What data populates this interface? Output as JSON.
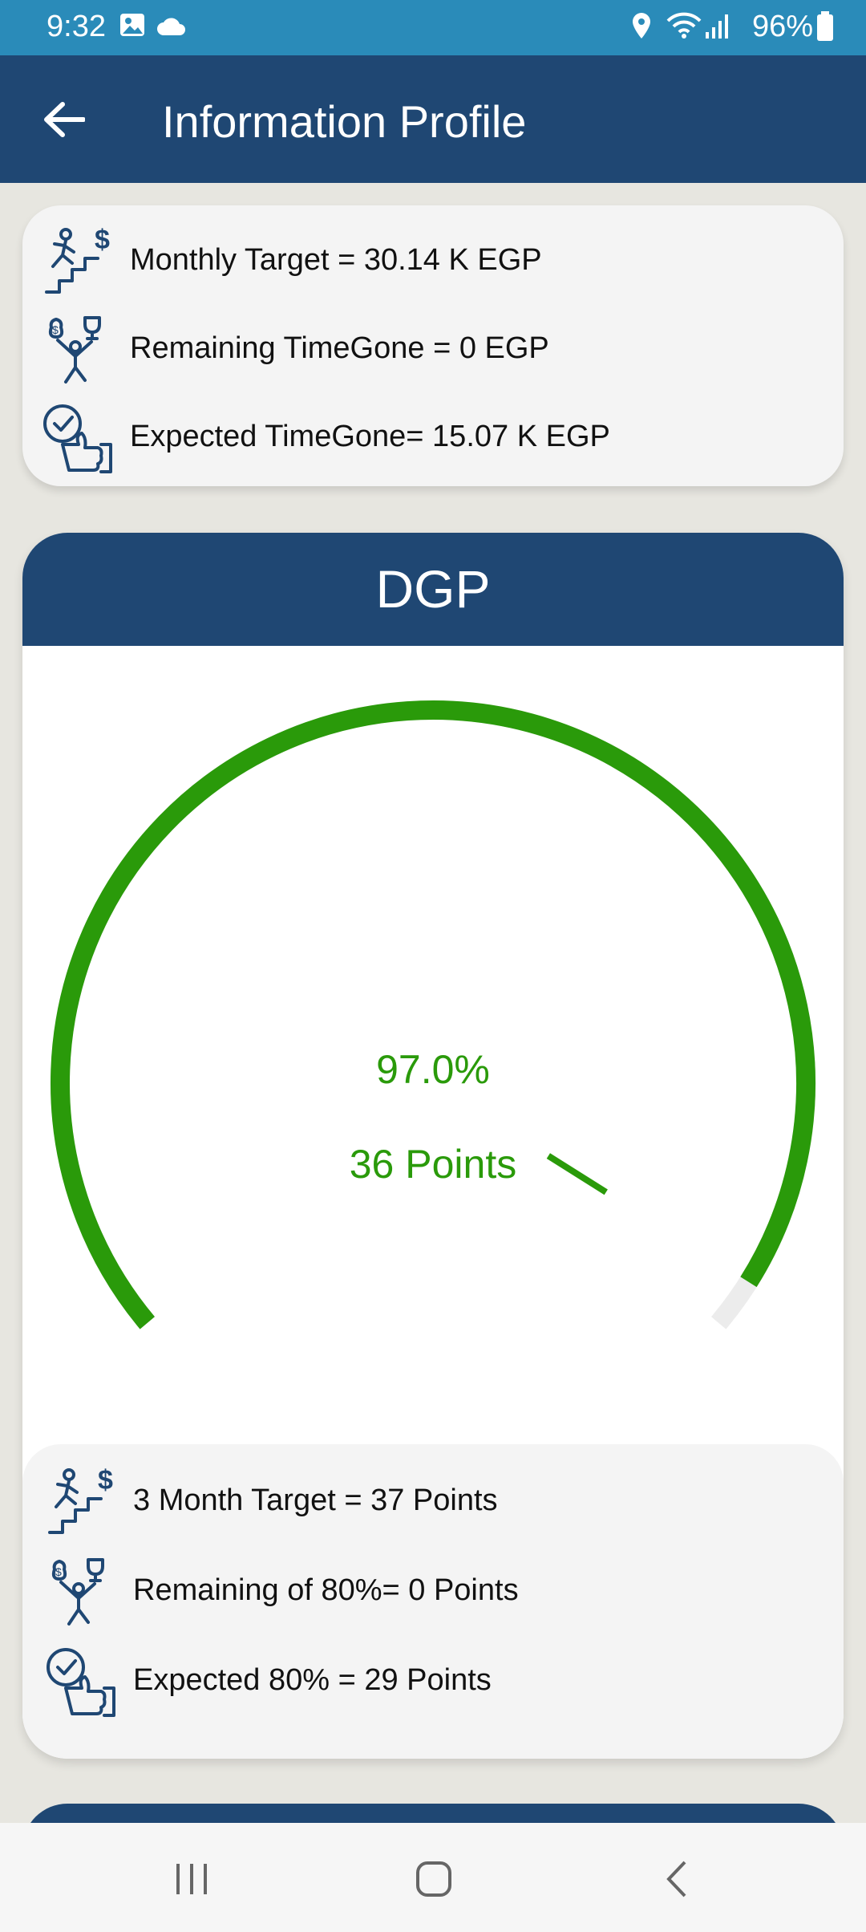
{
  "status": {
    "time": "9:32",
    "battery": "96%"
  },
  "header": {
    "title": "Information Profile"
  },
  "top_card": {
    "rows": [
      {
        "text": "Monthly Target = 30.14 K EGP",
        "icon": "stairs-target-icon"
      },
      {
        "text": "Remaining TimeGone = 0 EGP",
        "icon": "money-trophy-juggler-icon"
      },
      {
        "text": "Expected TimeGone= 15.07 K EGP",
        "icon": "thumbs-up-check-icon"
      }
    ]
  },
  "dgp": {
    "title": "DGP",
    "percent": "97.0%",
    "points": "36 Points",
    "progress": 0.97,
    "rows": [
      {
        "text": "3 Month Target = 37 Points",
        "icon": "stairs-target-icon"
      },
      {
        "text": "Remaining of 80%= 0 Points",
        "icon": "money-trophy-juggler-icon"
      },
      {
        "text": "Expected 80% = 29 Points",
        "icon": "thumbs-up-check-icon"
      }
    ]
  },
  "colors": {
    "primary": "#1f4773",
    "status": "#2a8bb9",
    "gauge": "#2a9a0a",
    "icon": "#1f4773"
  }
}
